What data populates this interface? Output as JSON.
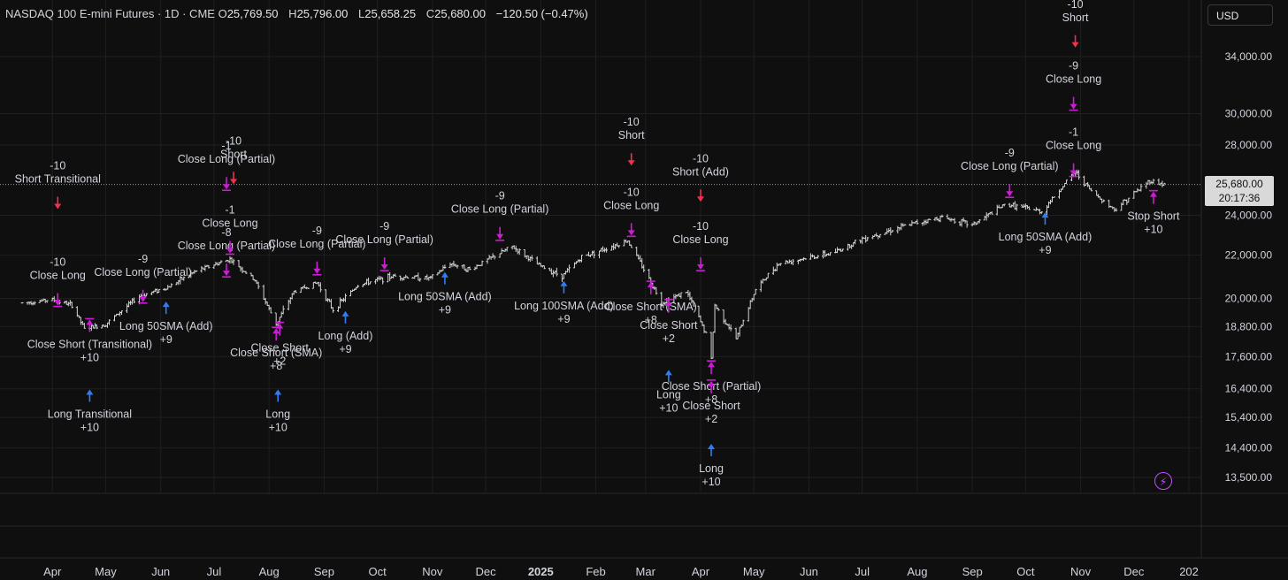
{
  "header": {
    "symbol": "NASDAQ 100 E-mini Futures · 1D · CME",
    "open_label": "O",
    "open": "25,769.50",
    "high_label": "H",
    "high": "25,796.00",
    "low_label": "L",
    "low": "25,658.25",
    "close_label": "C",
    "close": "25,680.00",
    "change": "−120.50 (−0.47%)"
  },
  "currency_button": "USD",
  "last_price": {
    "value": "25,680.00",
    "countdown": "20:17:36"
  },
  "chart_data": {
    "type": "bar",
    "title": "NASDAQ 100 E-mini Futures · 1D · CME",
    "y_scale": "log",
    "ylim": [
      13000,
      38000
    ],
    "y_ticks": [
      34000,
      30000,
      28000,
      24000,
      22000,
      20000,
      18800,
      17600,
      16400,
      15400,
      14400,
      13500
    ],
    "y_tick_labels": [
      "34,000.00",
      "30,000.00",
      "28,000.00",
      "24,000.00",
      "22,000.00",
      "20,000.00",
      "18,800.00",
      "17,600.00",
      "16,400.00",
      "15,400.00",
      "14,400.00",
      "13,500.00"
    ],
    "x_tick_labels": [
      "Apr",
      "May",
      "Jun",
      "Jul",
      "Aug",
      "Sep",
      "Oct",
      "Nov",
      "Dec",
      "2025",
      "Feb",
      "Mar",
      "Apr",
      "May",
      "Jun",
      "Jul",
      "Aug",
      "Sep",
      "Oct",
      "Nov",
      "Dec",
      "202"
    ],
    "price_path": [
      [
        "2024-03-15",
        19800
      ],
      [
        "2024-04-01",
        19950
      ],
      [
        "2024-04-12",
        19700
      ],
      [
        "2024-04-19",
        18700
      ],
      [
        "2024-05-01",
        18900
      ],
      [
        "2024-05-20",
        20100
      ],
      [
        "2024-06-05",
        20500
      ],
      [
        "2024-06-20",
        21200
      ],
      [
        "2024-07-10",
        21800
      ],
      [
        "2024-07-24",
        20800
      ],
      [
        "2024-08-05",
        18900
      ],
      [
        "2024-08-15",
        20300
      ],
      [
        "2024-08-28",
        20700
      ],
      [
        "2024-09-06",
        19500
      ],
      [
        "2024-09-20",
        20600
      ],
      [
        "2024-10-10",
        21000
      ],
      [
        "2024-10-31",
        20900
      ],
      [
        "2024-11-11",
        21600
      ],
      [
        "2024-11-22",
        21300
      ],
      [
        "2024-12-05",
        21900
      ],
      [
        "2024-12-16",
        22400
      ],
      [
        "2024-12-31",
        21500
      ],
      [
        "2025-01-13",
        21000
      ],
      [
        "2025-01-24",
        21900
      ],
      [
        "2025-02-19",
        22700
      ],
      [
        "2025-03-10",
        19800
      ],
      [
        "2025-03-24",
        20300
      ],
      [
        "2025-04-04",
        18500
      ],
      [
        "2025-04-07",
        17500
      ],
      [
        "2025-04-09",
        19700
      ],
      [
        "2025-04-21",
        18300
      ],
      [
        "2025-05-02",
        20400
      ],
      [
        "2025-05-15",
        21600
      ],
      [
        "2025-06-15",
        22100
      ],
      [
        "2025-07-01",
        22800
      ],
      [
        "2025-07-31",
        23600
      ],
      [
        "2025-08-15",
        23900
      ],
      [
        "2025-09-01",
        23500
      ],
      [
        "2025-09-20",
        24600
      ],
      [
        "2025-10-10",
        24200
      ],
      [
        "2025-10-29",
        26400
      ],
      [
        "2025-11-07",
        25300
      ],
      [
        "2025-11-20",
        24300
      ],
      [
        "2025-12-10",
        25900
      ],
      [
        "2025-12-18",
        25680
      ]
    ],
    "last_price": 25680,
    "signals": [
      {
        "date": "2024-04-04",
        "price": 20150,
        "kind": "close-long",
        "lines": [
          "-10",
          "Close Long"
        ]
      },
      {
        "date": "2024-04-04",
        "price": 24900,
        "kind": "short",
        "lines": [
          "-10",
          "Short Transitional"
        ]
      },
      {
        "date": "2024-04-22",
        "price": 18650,
        "kind": "close-short",
        "lines": [
          "Close Short (Transitional)",
          "+10"
        ]
      },
      {
        "date": "2024-04-22",
        "price": 16000,
        "kind": "long",
        "lines": [
          "Long Transitional",
          "+10"
        ]
      },
      {
        "date": "2024-05-22",
        "price": 20300,
        "kind": "close-long",
        "lines": [
          "-9",
          "Close Long (Partial)"
        ]
      },
      {
        "date": "2024-06-04",
        "price": 19400,
        "kind": "long",
        "lines": [
          "Long 50SMA (Add)",
          "+9"
        ]
      },
      {
        "date": "2024-07-08",
        "price": 21500,
        "kind": "close-long",
        "lines": [
          "-8",
          "Close Long (Partial)"
        ]
      },
      {
        "date": "2024-07-10",
        "price": 22600,
        "kind": "close-long",
        "lines": [
          "-1",
          "Close Long"
        ]
      },
      {
        "date": "2024-07-08",
        "price": 26000,
        "kind": "close-long",
        "lines": [
          "-1",
          "Close Long (Partial)"
        ]
      },
      {
        "date": "2024-07-12",
        "price": 26300,
        "kind": "short",
        "lines": [
          "-10",
          "Short"
        ]
      },
      {
        "date": "2024-08-05",
        "price": 18300,
        "kind": "close-short",
        "lines": [
          "Close Short (SMA)",
          "+8"
        ]
      },
      {
        "date": "2024-08-07",
        "price": 18500,
        "kind": "close-short",
        "lines": [
          "Close Short",
          "+2"
        ]
      },
      {
        "date": "2024-08-06",
        "price": 16000,
        "kind": "long",
        "lines": [
          "Long",
          "+10"
        ]
      },
      {
        "date": "2024-08-28",
        "price": 21600,
        "kind": "close-long",
        "lines": [
          "-9",
          "Close Long (Partial)"
        ]
      },
      {
        "date": "2024-09-13",
        "price": 19000,
        "kind": "long",
        "lines": [
          "Long (Add)",
          "+9"
        ]
      },
      {
        "date": "2024-10-05",
        "price": 21800,
        "kind": "close-long",
        "lines": [
          "-9",
          "Close Long (Partial)"
        ]
      },
      {
        "date": "2024-11-08",
        "price": 20700,
        "kind": "long",
        "lines": [
          "Long 50SMA (Add)",
          "+9"
        ]
      },
      {
        "date": "2024-12-09",
        "price": 23300,
        "kind": "close-long",
        "lines": [
          "-9",
          "Close Long (Partial)"
        ]
      },
      {
        "date": "2025-01-14",
        "price": 20300,
        "kind": "long",
        "lines": [
          "Long 100SMA (Add)",
          "+9"
        ]
      },
      {
        "date": "2025-02-21",
        "price": 23500,
        "kind": "close-long",
        "lines": [
          "-10",
          "Close Long"
        ]
      },
      {
        "date": "2025-02-21",
        "price": 27400,
        "kind": "short",
        "lines": [
          "-10",
          "Short"
        ]
      },
      {
        "date": "2025-03-04",
        "price": 20250,
        "kind": "close-short",
        "lines": [
          "Close Short (SMA)",
          "+8"
        ]
      },
      {
        "date": "2025-03-14",
        "price": 19450,
        "kind": "close-short",
        "lines": [
          "Close Short",
          "+2"
        ]
      },
      {
        "date": "2025-03-14",
        "price": 16700,
        "kind": "long",
        "lines": [
          "Long",
          "+10"
        ]
      },
      {
        "date": "2025-04-01",
        "price": 21800,
        "kind": "close-long",
        "lines": [
          "-10",
          "Close Long"
        ]
      },
      {
        "date": "2025-04-01",
        "price": 25300,
        "kind": "short",
        "lines": [
          "-10",
          "Short (Add)"
        ]
      },
      {
        "date": "2025-04-07",
        "price": 17000,
        "kind": "close-short",
        "lines": [
          "Close Short (Partial)",
          "+8"
        ]
      },
      {
        "date": "2025-04-07",
        "price": 16300,
        "kind": "close-short",
        "lines": [
          "Close Short",
          "+2"
        ]
      },
      {
        "date": "2025-04-07",
        "price": 14200,
        "kind": "long",
        "lines": [
          "Long",
          "+10"
        ]
      },
      {
        "date": "2025-09-22",
        "price": 25600,
        "kind": "close-long",
        "lines": [
          "-9",
          "Close Long (Partial)"
        ]
      },
      {
        "date": "2025-10-12",
        "price": 23600,
        "kind": "long",
        "lines": [
          "Long 50SMA (Add)",
          "+9"
        ]
      },
      {
        "date": "2025-10-28",
        "price": 26800,
        "kind": "close-long",
        "lines": [
          "-1",
          "Close Long"
        ]
      },
      {
        "date": "2025-10-28",
        "price": 31000,
        "kind": "close-long",
        "lines": [
          "-9",
          "Close Long"
        ]
      },
      {
        "date": "2025-10-29",
        "price": 35500,
        "kind": "short",
        "lines": [
          "-10",
          "Short"
        ]
      },
      {
        "date": "2025-12-12",
        "price": 24700,
        "kind": "close-short",
        "lines": [
          "Stop Short",
          "+10"
        ]
      }
    ]
  },
  "colors": {
    "background": "#0f0f0f",
    "grid": "#1f1f1f",
    "bar": "#d6d6d6",
    "long": "#2f7df6",
    "short": "#f0304f",
    "close": "#cc1cd6",
    "label": "#d1d4dc"
  }
}
